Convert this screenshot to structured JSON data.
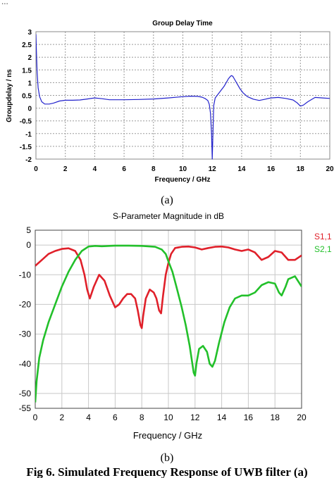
{
  "header_fragment": "...",
  "panel_a": {
    "caption": "(a)",
    "chart_data": {
      "type": "line",
      "title": "Group Delay Time",
      "xlabel": "Frequency / GHz",
      "ylabel": "Groupdelay / ns",
      "xlim": [
        0,
        20
      ],
      "ylim": [
        -2,
        3
      ],
      "x_ticks": [
        "0",
        "2",
        "4",
        "6",
        "8",
        "10",
        "12",
        "14",
        "16",
        "18",
        "20"
      ],
      "y_ticks": [
        "3",
        "2.5",
        "2",
        "1.5",
        "1",
        "0.5",
        "0",
        "-0.5",
        "-1",
        "-1.5",
        "-2"
      ],
      "grid": true,
      "series": [
        {
          "color": "#2222cc",
          "x": [
            0,
            0.03,
            0.08,
            0.15,
            0.25,
            0.4,
            0.6,
            0.9,
            1.2,
            1.6,
            2,
            2.5,
            3,
            3.5,
            4,
            4.5,
            5,
            6,
            7,
            8,
            9,
            10,
            10.5,
            11,
            11.3,
            11.5,
            11.7,
            11.8,
            11.88,
            11.95,
            12.0,
            12.05,
            12.1,
            12.2,
            12.4,
            12.6,
            12.8,
            13.0,
            13.1,
            13.2,
            13.3,
            13.4,
            13.5,
            13.7,
            13.9,
            14.1,
            14.4,
            14.8,
            15.2,
            15.6,
            16,
            16.5,
            17,
            17.5,
            17.8,
            18,
            18.2,
            18.5,
            19,
            19.5,
            20
          ],
          "y": [
            2.9,
            2.3,
            1.4,
            0.8,
            0.45,
            0.25,
            0.16,
            0.16,
            0.2,
            0.28,
            0.31,
            0.31,
            0.32,
            0.36,
            0.4,
            0.37,
            0.33,
            0.33,
            0.34,
            0.36,
            0.4,
            0.45,
            0.47,
            0.46,
            0.43,
            0.38,
            0.3,
            0.15,
            -0.2,
            -1.0,
            -2.0,
            -1.0,
            0.1,
            0.4,
            0.55,
            0.7,
            0.85,
            1.05,
            1.15,
            1.22,
            1.28,
            1.25,
            1.15,
            0.95,
            0.75,
            0.6,
            0.45,
            0.35,
            0.3,
            0.35,
            0.4,
            0.42,
            0.38,
            0.32,
            0.2,
            0.08,
            0.12,
            0.25,
            0.42,
            0.4,
            0.38
          ]
        }
      ]
    }
  },
  "panel_b": {
    "caption": "(b)",
    "chart_data": {
      "type": "line",
      "title": "S-Parameter Magnitude in dB",
      "xlabel": "Frequency / GHz",
      "ylabel": "",
      "xlim": [
        0,
        20
      ],
      "ylim": [
        -55,
        5
      ],
      "x_ticks": [
        "0",
        "2",
        "4",
        "6",
        "8",
        "10",
        "12",
        "14",
        "16",
        "18",
        "20"
      ],
      "y_ticks": [
        "5",
        "0",
        "-10",
        "-20",
        "-30",
        "-40",
        "-50",
        "-55"
      ],
      "y_tick_values": [
        5,
        0,
        -10,
        -20,
        -30,
        -40,
        -50,
        -55
      ],
      "grid": true,
      "legend_position": "right",
      "series": [
        {
          "name": "S1,1",
          "color": "#e0202a",
          "x": [
            0,
            0.5,
            1,
            1.5,
            2,
            2.5,
            3,
            3.4,
            3.7,
            3.9,
            4.1,
            4.4,
            4.8,
            5.2,
            5.6,
            6.0,
            6.3,
            6.6,
            6.9,
            7.2,
            7.5,
            7.7,
            7.9,
            8.0,
            8.1,
            8.3,
            8.6,
            8.9,
            9.1,
            9.3,
            9.45,
            9.6,
            9.8,
            10.0,
            10.2,
            10.5,
            11,
            11.5,
            12,
            12.5,
            13,
            13.5,
            14,
            14.5,
            15,
            15.5,
            16,
            16.5,
            17,
            17.5,
            18,
            18.5,
            19,
            19.5,
            20
          ],
          "y": [
            -7,
            -5,
            -3,
            -2,
            -1.3,
            -1.1,
            -2,
            -5,
            -10,
            -15,
            -18,
            -14,
            -10,
            -12,
            -17,
            -21,
            -20,
            -18,
            -16.5,
            -16.5,
            -18,
            -22,
            -27,
            -28,
            -24,
            -18,
            -15,
            -16,
            -18,
            -22,
            -23,
            -17,
            -10,
            -6,
            -3,
            -1,
            -0.6,
            -0.5,
            -0.8,
            -1.5,
            -1.0,
            -0.6,
            -0.5,
            -0.8,
            -1.5,
            -2.0,
            -1.5,
            -2.5,
            -5,
            -4,
            -2,
            -2.5,
            -5,
            -5,
            -3.5
          ]
        },
        {
          "name": "S2,1",
          "color": "#22c02a",
          "x": [
            0,
            0.1,
            0.3,
            0.6,
            1,
            1.5,
            2,
            2.5,
            3,
            3.5,
            4,
            4.5,
            5,
            6,
            7,
            8,
            9,
            9.5,
            9.8,
            10.0,
            10.3,
            10.6,
            11.0,
            11.3,
            11.6,
            11.8,
            11.9,
            12.0,
            12.1,
            12.3,
            12.6,
            12.9,
            13.1,
            13.3,
            13.5,
            13.8,
            14.2,
            14.6,
            15,
            15.5,
            16,
            16.5,
            17,
            17.5,
            18,
            18.3,
            18.5,
            18.8,
            19,
            19.5,
            20
          ],
          "y": [
            -53,
            -46,
            -38,
            -32,
            -26,
            -20,
            -14,
            -9,
            -5,
            -2,
            -0.5,
            -0.3,
            -0.4,
            -0.2,
            -0.2,
            -0.3,
            -0.6,
            -1.5,
            -3,
            -5.5,
            -9,
            -14,
            -21,
            -27,
            -34,
            -40,
            -43,
            -44,
            -40,
            -35,
            -34,
            -36,
            -40,
            -41,
            -39,
            -33,
            -26,
            -21,
            -18,
            -17,
            -17,
            -16,
            -13.5,
            -12.5,
            -13,
            -16,
            -17,
            -14,
            -11.5,
            -10.5,
            -14
          ]
        }
      ]
    }
  },
  "figure_caption": "Fig 6. Simulated Frequency Response of UWB filter (a)"
}
